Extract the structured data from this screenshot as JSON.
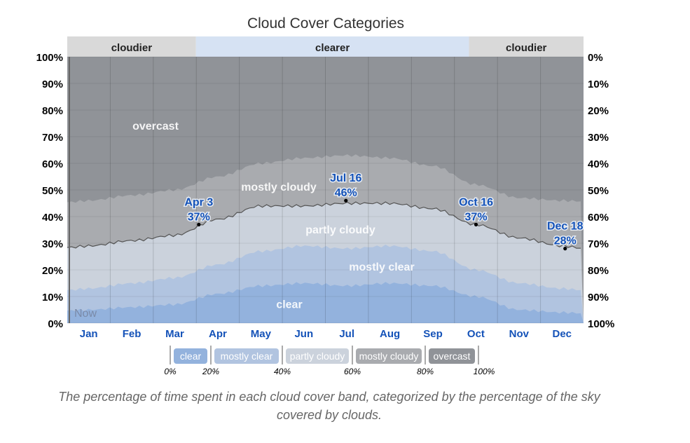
{
  "chart_data": {
    "type": "area",
    "title": "Cloud Cover Categories",
    "caption": "The percentage of time spent in each cloud cover band, categorized by the percentage of the sky covered by clouds.",
    "categories": [
      "Jan",
      "Feb",
      "Mar",
      "Apr",
      "May",
      "Jun",
      "Jul",
      "Aug",
      "Sep",
      "Oct",
      "Nov",
      "Dec"
    ],
    "ylim": [
      0,
      100
    ],
    "y_ticks_left": [
      "0%",
      "10%",
      "20%",
      "30%",
      "40%",
      "50%",
      "60%",
      "70%",
      "80%",
      "90%",
      "100%"
    ],
    "y_ticks_right": [
      "100%",
      "90%",
      "80%",
      "70%",
      "60%",
      "50%",
      "40%",
      "30%",
      "20%",
      "10%",
      "0%"
    ],
    "cumulative_series": [
      {
        "name": "clear",
        "color": "#93b2dd",
        "values": [
          5,
          6,
          7,
          11,
          14,
          15,
          14,
          15,
          14,
          10,
          5,
          4
        ]
      },
      {
        "name": "mostly clear",
        "color": "#b1c4e0",
        "values": [
          13,
          15,
          17,
          22,
          27,
          29,
          28,
          29,
          27,
          20,
          15,
          13
        ]
      },
      {
        "name": "partly cloudy",
        "color": "#cbd2dc",
        "values": [
          29,
          31,
          33,
          39,
          44,
          44,
          45,
          45,
          43,
          37,
          32,
          29
        ]
      },
      {
        "name": "mostly cloudy",
        "color": "#a9abaf",
        "values": [
          46,
          48,
          50,
          55,
          60,
          62,
          63,
          62,
          59,
          52,
          47,
          46
        ]
      },
      {
        "name": "overcast",
        "color": "#909398",
        "values": [
          100,
          100,
          100,
          100,
          100,
          100,
          100,
          100,
          100,
          100,
          100,
          100
        ]
      }
    ],
    "area_labels": [
      {
        "text": "clear",
        "y": 7
      },
      {
        "text": "mostly clear",
        "y": 21
      },
      {
        "text": "partly cloudy",
        "y": 35
      },
      {
        "text": "mostly cloudy",
        "y": 51
      },
      {
        "text": "overcast",
        "y": 74
      }
    ],
    "bands": [
      {
        "label": "cloudier",
        "from_day": 0,
        "to_day": 91
      },
      {
        "label": "clearer",
        "from_day": 91,
        "to_day": 284
      },
      {
        "label": "cloudier",
        "from_day": 284,
        "to_day": 365
      }
    ],
    "annotations": [
      {
        "date": "Apr 3",
        "value": "37%",
        "day": 93,
        "y": 37
      },
      {
        "date": "Jul 16",
        "value": "46%",
        "day": 197,
        "y": 46
      },
      {
        "date": "Oct 16",
        "value": "37%",
        "day": 289,
        "y": 37
      },
      {
        "date": "Dec 18",
        "value": "28%",
        "day": 352,
        "y": 28
      }
    ],
    "now_label": "Now",
    "legend": {
      "items": [
        "clear",
        "mostly clear",
        "partly cloudy",
        "mostly cloudy",
        "overcast"
      ],
      "ticks": [
        "0%",
        "20%",
        "40%",
        "60%",
        "80%",
        "100%"
      ]
    }
  }
}
